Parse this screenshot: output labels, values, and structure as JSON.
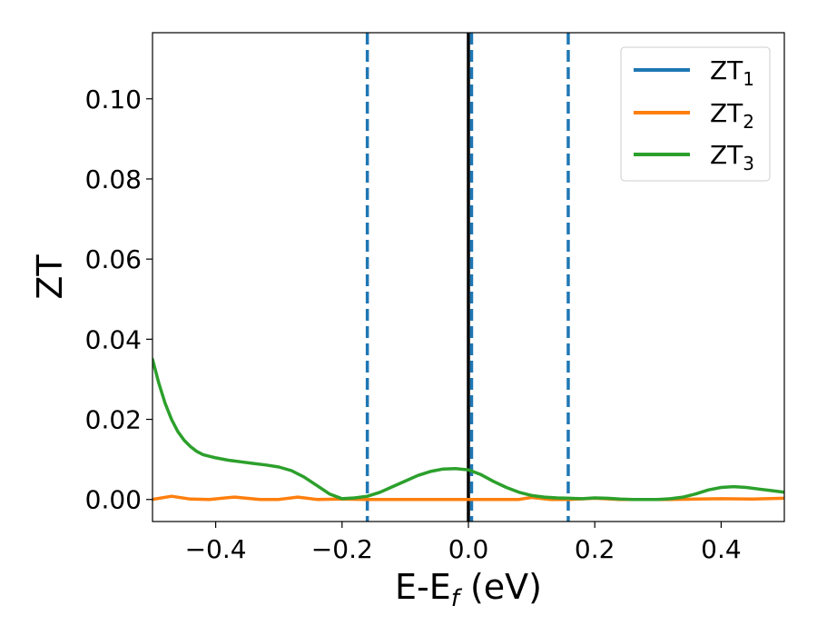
{
  "chart_data": {
    "type": "line",
    "xlabel_main": "E-E",
    "xlabel_sub": "f",
    "xlabel_unit": " (eV)",
    "ylabel": "ZT",
    "xlim": [
      -0.5,
      0.5
    ],
    "ylim": [
      -0.0055,
      0.1165
    ],
    "xticks": [
      -0.4,
      -0.2,
      0.0,
      0.2,
      0.4
    ],
    "xtick_labels": [
      "−0.4",
      "−0.2",
      "0.0",
      "0.2",
      "0.4"
    ],
    "yticks": [
      0.0,
      0.02,
      0.04,
      0.06,
      0.08,
      0.1
    ],
    "ytick_labels": [
      "0.00",
      "0.02",
      "0.04",
      "0.06",
      "0.08",
      "0.10"
    ],
    "grid": false,
    "legend_position": "top-right",
    "vertical_lines": [
      {
        "x": -0.16,
        "style": "dashed",
        "color": "#1f77b4"
      },
      {
        "x": 0.0,
        "style": "solid",
        "color": "#000000"
      },
      {
        "x": 0.005,
        "style": "dashed",
        "color": "#1f77b4"
      },
      {
        "x": 0.158,
        "style": "dashed",
        "color": "#1f77b4"
      }
    ],
    "series": [
      {
        "name_main": "ZT",
        "name_sub": "1",
        "color": "#1f77b4",
        "x": [],
        "y": []
      },
      {
        "name_main": "ZT",
        "name_sub": "2",
        "color": "#ff7f0e",
        "x": [
          -0.5,
          -0.47,
          -0.44,
          -0.41,
          -0.37,
          -0.33,
          -0.3,
          -0.27,
          -0.24,
          -0.2,
          -0.16,
          -0.12,
          -0.08,
          -0.04,
          0.0,
          0.04,
          0.08,
          0.1,
          0.13,
          0.16,
          0.2,
          0.24,
          0.28,
          0.32,
          0.36,
          0.4,
          0.45,
          0.5
        ],
        "y": [
          0.0,
          0.0008,
          0.0001,
          0.0,
          0.0006,
          0.0,
          0.0,
          0.0006,
          0.0,
          0.0001,
          0.0,
          0.0,
          0.0,
          0.0,
          0.0,
          0.0,
          0.0,
          0.0005,
          0.0,
          0.0,
          0.0003,
          0.0,
          0.0,
          0.0,
          0.0001,
          0.0002,
          0.0001,
          0.0003
        ]
      },
      {
        "name_main": "ZT",
        "name_sub": "3",
        "color": "#2ca02c",
        "x": [
          -0.5,
          -0.49,
          -0.48,
          -0.47,
          -0.46,
          -0.45,
          -0.44,
          -0.43,
          -0.42,
          -0.4,
          -0.38,
          -0.36,
          -0.34,
          -0.32,
          -0.3,
          -0.28,
          -0.26,
          -0.24,
          -0.22,
          -0.2,
          -0.18,
          -0.16,
          -0.14,
          -0.12,
          -0.1,
          -0.08,
          -0.06,
          -0.04,
          -0.02,
          0.0,
          0.02,
          0.04,
          0.06,
          0.08,
          0.1,
          0.12,
          0.14,
          0.16,
          0.18,
          0.2,
          0.22,
          0.24,
          0.26,
          0.28,
          0.3,
          0.32,
          0.34,
          0.36,
          0.38,
          0.4,
          0.42,
          0.44,
          0.46,
          0.48,
          0.5
        ],
        "y": [
          0.035,
          0.029,
          0.024,
          0.02,
          0.017,
          0.0148,
          0.0132,
          0.012,
          0.0112,
          0.0104,
          0.0098,
          0.0094,
          0.009,
          0.0086,
          0.0081,
          0.0072,
          0.0056,
          0.0035,
          0.0014,
          0.0002,
          0.0004,
          0.0008,
          0.0018,
          0.0032,
          0.0046,
          0.006,
          0.007,
          0.0076,
          0.0077,
          0.0074,
          0.0062,
          0.0045,
          0.003,
          0.0018,
          0.001,
          0.0006,
          0.0004,
          0.0003,
          0.0002,
          0.0004,
          0.0003,
          0.0001,
          0.0,
          0.0,
          0.0,
          0.0002,
          0.0006,
          0.0014,
          0.0024,
          0.003,
          0.0032,
          0.003,
          0.0026,
          0.0022,
          0.0018
        ]
      }
    ]
  }
}
